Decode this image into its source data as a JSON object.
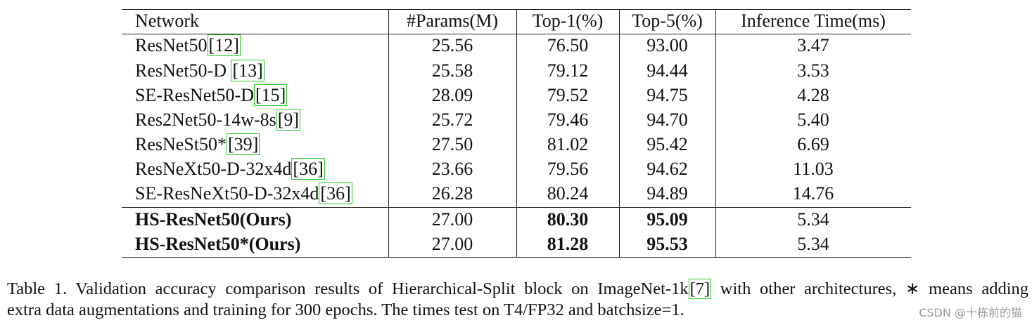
{
  "table": {
    "header": [
      "Network",
      "#Params(M)",
      "Top-1(%)",
      "Top-5(%)",
      "Inference Time(ms)"
    ],
    "rows": [
      {
        "network": "ResNet50",
        "cite": "[12]",
        "cells": [
          "25.56",
          "76.50",
          "93.00",
          "3.47"
        ]
      },
      {
        "network": "ResNet50-D ",
        "cite": "[13]",
        "cells": [
          "25.58",
          "79.12",
          "94.44",
          "3.53"
        ]
      },
      {
        "network": "SE-ResNet50-D",
        "cite": "[15]",
        "cells": [
          "28.09",
          "79.52",
          "94.75",
          "4.28"
        ]
      },
      {
        "network": "Res2Net50-14w-8s",
        "cite": "[9]",
        "cells": [
          "25.72",
          "79.46",
          "94.70",
          "5.40"
        ]
      },
      {
        "network": "ResNeSt50*",
        "cite": "[39]",
        "cells": [
          "27.50",
          "81.02",
          "95.42",
          "6.69"
        ]
      },
      {
        "network": "ResNeXt50-D-32x4d",
        "cite": "[36]",
        "cells": [
          "23.66",
          "79.56",
          "94.62",
          "11.03"
        ]
      },
      {
        "network": "SE-ResNeXt50-D-32x4d",
        "cite": "[36]",
        "cells": [
          "26.28",
          "80.24",
          "94.89",
          "14.76"
        ]
      },
      {
        "network": "HS-ResNet50(Ours)",
        "cells": [
          "27.00",
          "80.30",
          "95.09",
          "5.34"
        ]
      },
      {
        "network": "HS-ResNet50*(Ours)",
        "cells": [
          "27.00",
          "81.28",
          "95.53",
          "5.34"
        ]
      }
    ]
  },
  "caption": {
    "line1_before": "Table 1. Validation accuracy comparison results of Hierarchical-Split block on ImageNet-1k",
    "cite": "[7]",
    "line1_after": " with other architectures, ∗ means adding",
    "line2": "extra data augmentations and training for 300 epochs. The times test on T4/FP32 and batchsize=1."
  },
  "watermark": "CSDN @十栋前的猫"
}
